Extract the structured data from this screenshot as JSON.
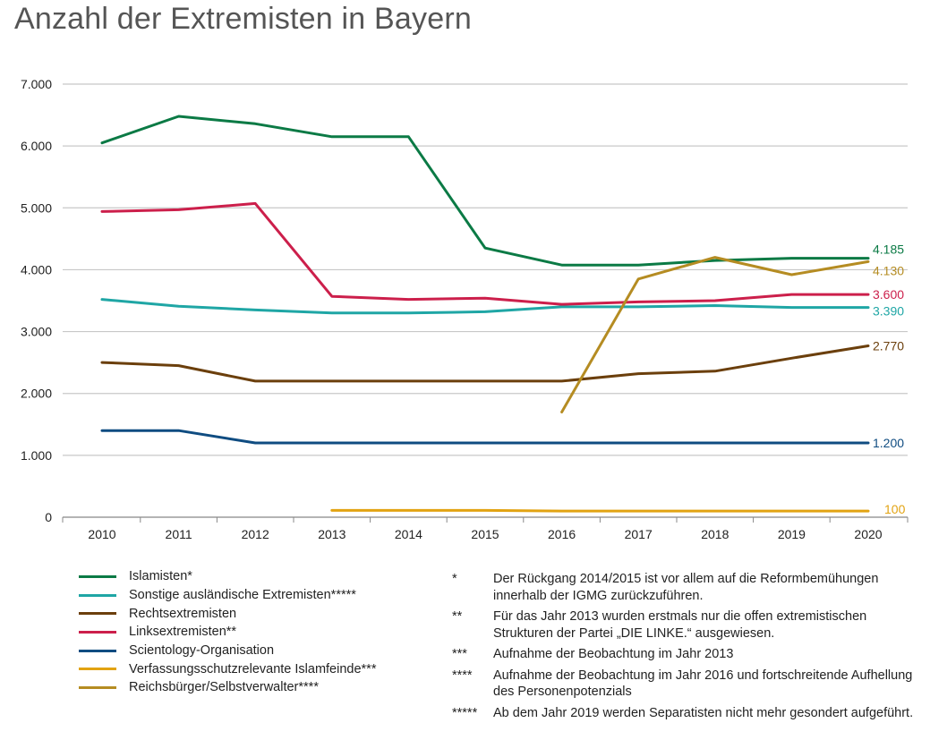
{
  "title": "Anzahl der Extremisten in Bayern",
  "chart_data": {
    "type": "line",
    "title": "Anzahl der Extremisten in Bayern",
    "x": [
      "2010",
      "2011",
      "2012",
      "2013",
      "2014",
      "2015",
      "2016",
      "2017",
      "2018",
      "2019",
      "2020"
    ],
    "yticks": [
      "0",
      "1.000",
      "2.000",
      "3.000",
      "4.000",
      "5.000",
      "6.000",
      "7.000"
    ],
    "ylim": [
      0,
      7000
    ],
    "grid": true,
    "series": [
      {
        "key": "islamisten",
        "name": "Islamisten*",
        "color": "#0b7a45",
        "values": [
          6050,
          6480,
          6360,
          6150,
          6150,
          4350,
          4075,
          4075,
          4150,
          4185,
          4185
        ],
        "end_label": "4.185"
      },
      {
        "key": "sonstige",
        "name": "Sonstige ausländische Extremisten*****",
        "color": "#1fa6a5",
        "values": [
          3520,
          3410,
          3350,
          3300,
          3300,
          3320,
          3400,
          3400,
          3420,
          3390,
          3390
        ],
        "end_label": "3.390"
      },
      {
        "key": "rechts",
        "name": "Rechtsextremisten",
        "color": "#6b3f0c",
        "values": [
          2500,
          2450,
          2200,
          2200,
          2200,
          2200,
          2200,
          2320,
          2360,
          2570,
          2770
        ],
        "end_label": "2.770"
      },
      {
        "key": "links",
        "name": "Linksextremisten**",
        "color": "#cc1f4b",
        "values": [
          4940,
          4970,
          5070,
          3570,
          3520,
          3540,
          3440,
          3480,
          3500,
          3600,
          3600
        ],
        "end_label": "3.600"
      },
      {
        "key": "scientology",
        "name": "Scientology-Organisation",
        "color": "#0f4c81",
        "values": [
          1400,
          1400,
          1200,
          1200,
          1200,
          1200,
          1200,
          1200,
          1200,
          1200,
          1200
        ],
        "end_label": "1.200"
      },
      {
        "key": "islamfeinde",
        "name": "Verfassungsschutzrelevante Islamfeinde***",
        "color": "#e2a312",
        "values": [
          null,
          null,
          null,
          110,
          110,
          110,
          100,
          100,
          100,
          100,
          100
        ],
        "end_label": "100"
      },
      {
        "key": "reichsbuerger",
        "name": "Reichsbürger/Selbstverwalter****",
        "color": "#b58c22",
        "values": [
          null,
          null,
          null,
          null,
          null,
          null,
          1700,
          3850,
          4200,
          3920,
          4130
        ],
        "end_label": "4.130"
      }
    ]
  },
  "notes": [
    {
      "mark": "*",
      "text": "Der Rückgang 2014/2015 ist vor allem auf die Reformbemühungen innerhalb der IGMG zurückzuführen."
    },
    {
      "mark": "**",
      "text": "Für das Jahr 2013 wurden erstmals nur die offen extremistischen Strukturen der Partei „DIE LINKE.“ ausgewiesen."
    },
    {
      "mark": "***",
      "text": "Aufnahme der Beobachtung im Jahr 2013"
    },
    {
      "mark": "****",
      "text": "Aufnahme der Beobachtung im Jahr 2016 und fortschreitende Aufhellung des Personenpotenzials"
    },
    {
      "mark": "*****",
      "text": "Ab dem Jahr 2019 werden Separatisten nicht mehr gesondert aufgeführt."
    }
  ]
}
